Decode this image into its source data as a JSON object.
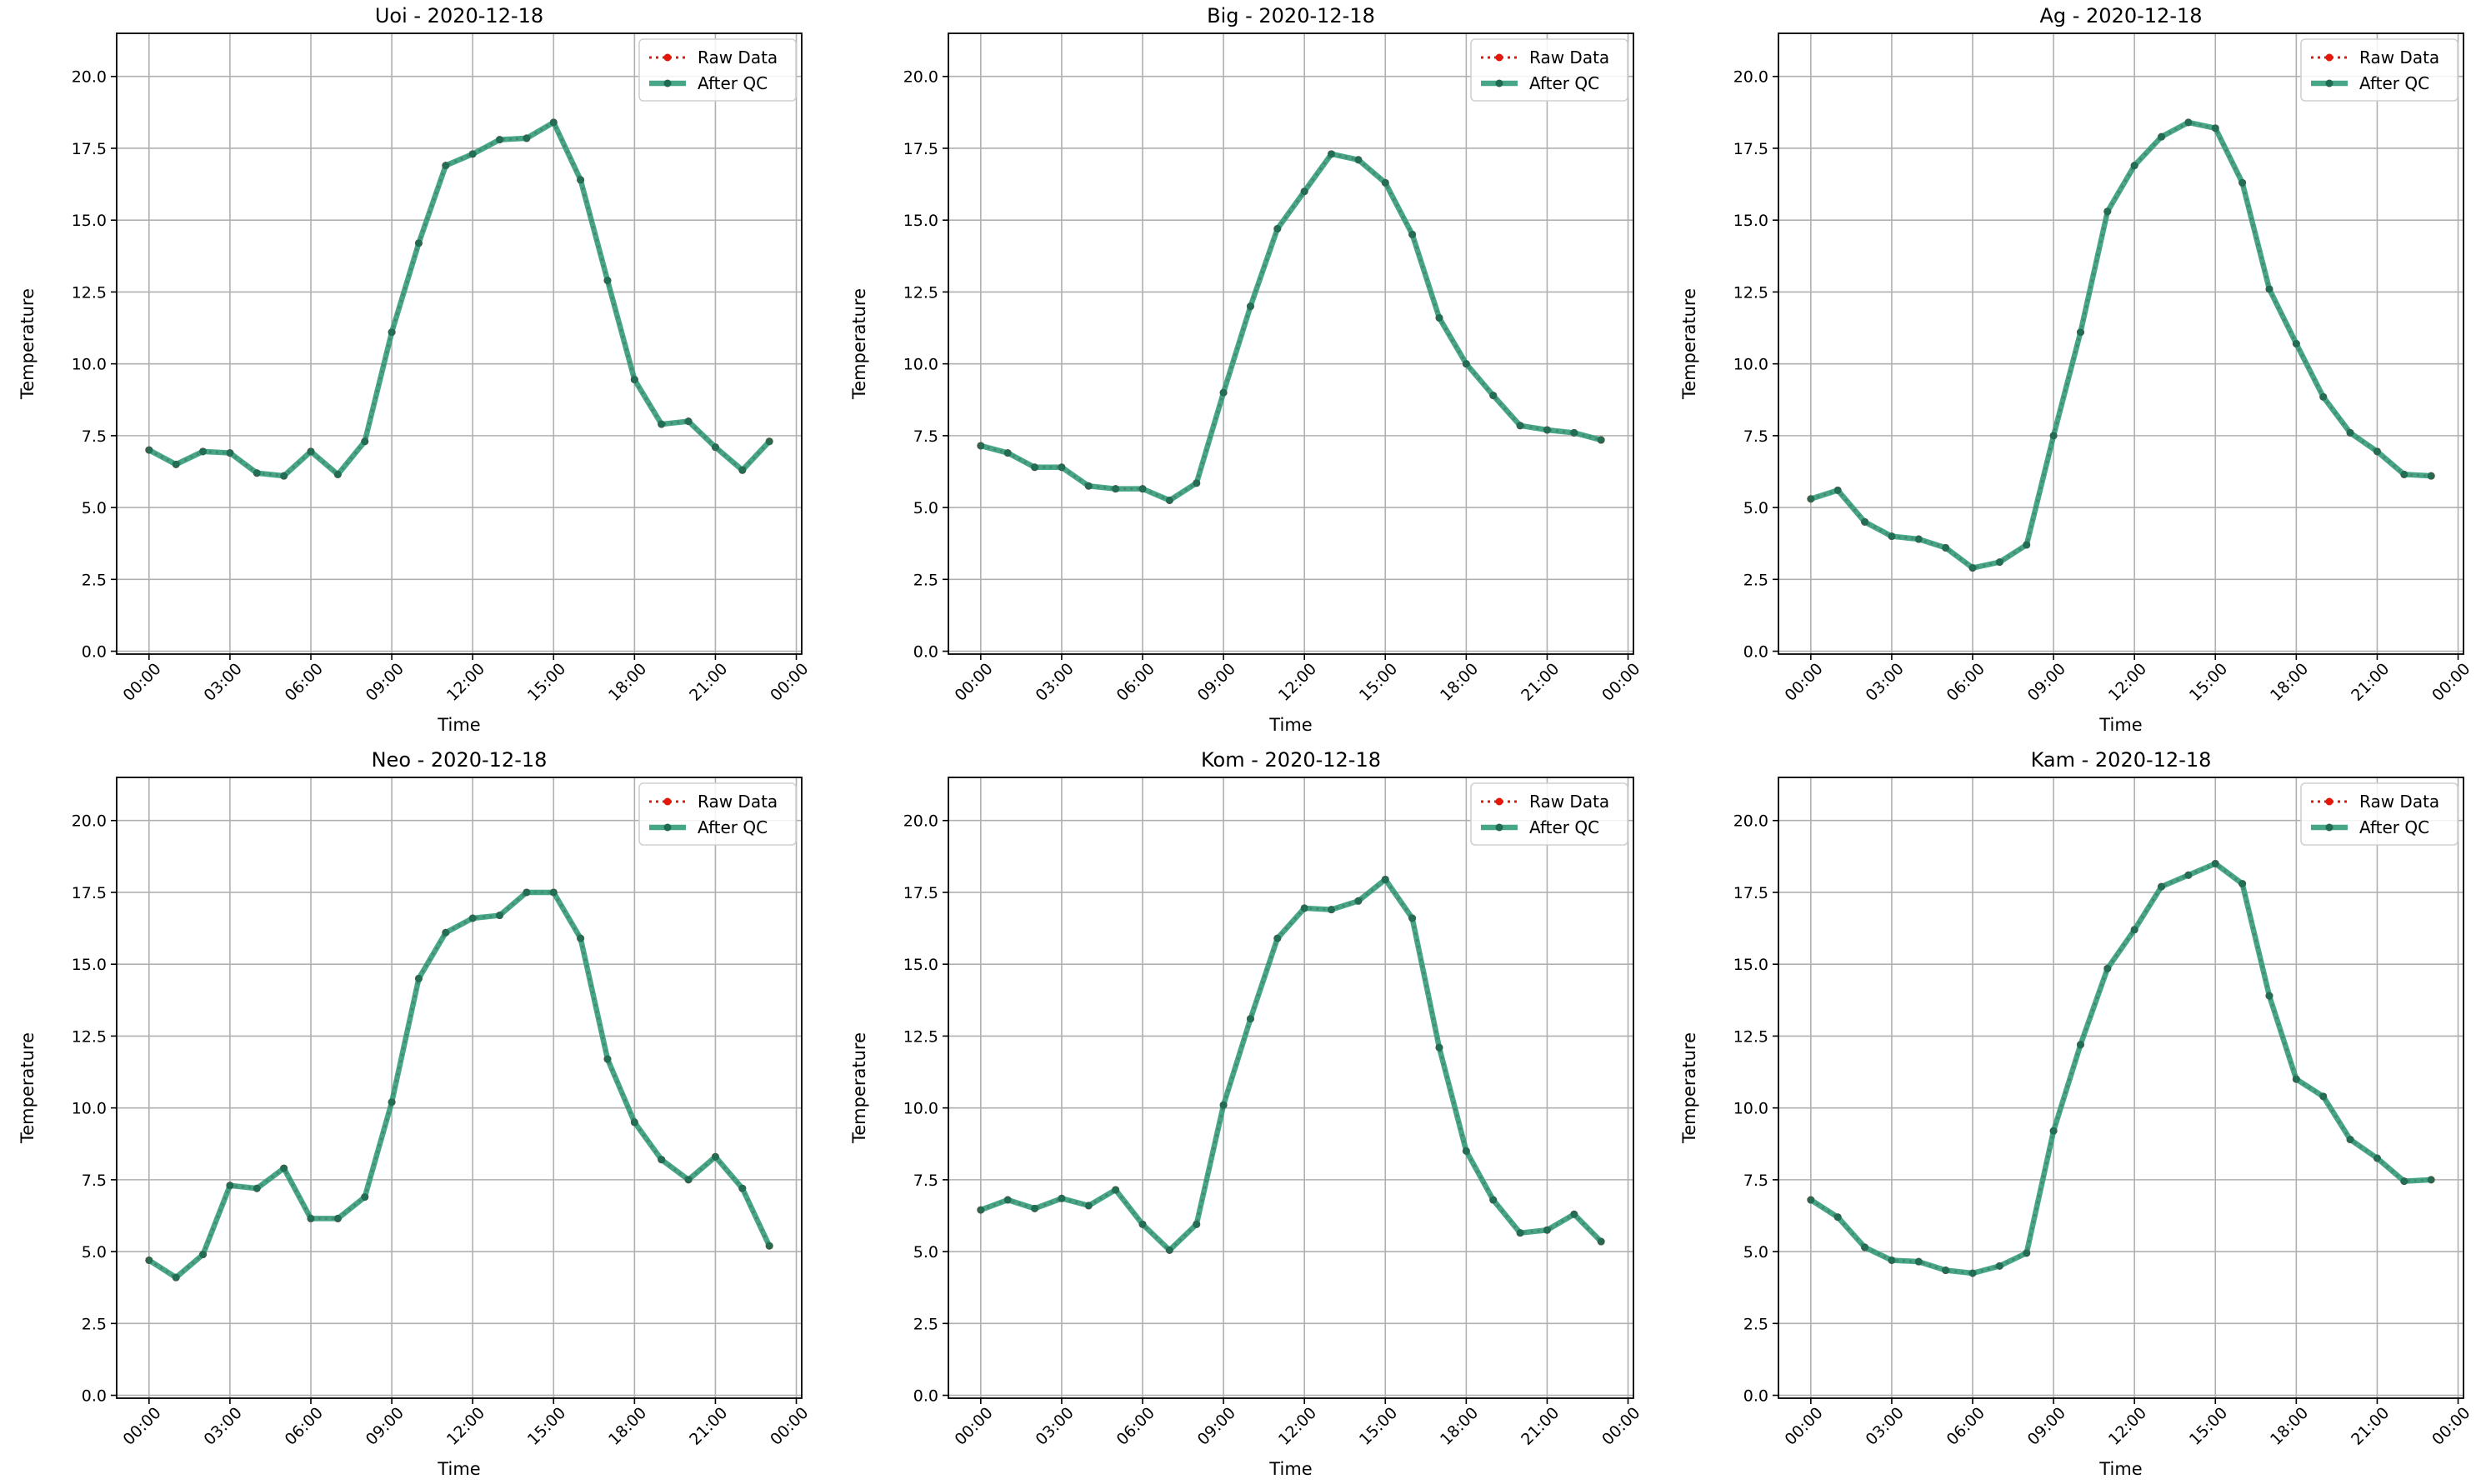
{
  "figure": {
    "xlabel": "Time",
    "ylabel": "Temperature",
    "colors": {
      "raw": "#e3170a",
      "qc": "#2e9a78",
      "qc_marker": "#1f6b52",
      "grid": "#b0b0b0",
      "axes": "#000000"
    },
    "legend": {
      "placement": "top-right",
      "raw_label": "Raw Data",
      "qc_label": "After QC"
    }
  },
  "chart_data": [
    {
      "type": "line",
      "title": "Uoi - 2020-12-18",
      "xlabel": "Time",
      "ylabel": "Temperature",
      "x_ticks": [
        "00:00",
        "03:00",
        "06:00",
        "09:00",
        "12:00",
        "15:00",
        "18:00",
        "21:00",
        "00:00"
      ],
      "y_ticks": [
        "0.0",
        "2.5",
        "5.0",
        "7.5",
        "10.0",
        "12.5",
        "15.0",
        "17.5",
        "20.0"
      ],
      "xlim": [
        -1.2,
        24.2
      ],
      "ylim": [
        -0.1,
        21.5
      ],
      "grid": true,
      "legend": "top-right",
      "x": [
        0,
        1,
        2,
        3,
        4,
        5,
        6,
        7,
        8,
        9,
        10,
        11,
        12,
        13,
        14,
        15,
        16,
        17,
        18,
        19,
        20,
        21,
        22,
        23
      ],
      "series": [
        {
          "name": "Raw Data",
          "style": "dotted-red",
          "values": [
            7.0,
            6.5,
            6.95,
            6.9,
            6.2,
            6.1,
            6.95,
            6.15,
            7.3,
            11.1,
            14.2,
            16.9,
            17.3,
            17.8,
            17.85,
            18.4,
            16.4,
            12.9,
            9.45,
            7.9,
            8.0,
            7.1,
            6.3,
            7.3
          ]
        },
        {
          "name": "After QC",
          "style": "solid-green",
          "values": [
            7.0,
            6.5,
            6.95,
            6.9,
            6.2,
            6.1,
            6.95,
            6.15,
            7.3,
            11.1,
            14.2,
            16.9,
            17.3,
            17.8,
            17.85,
            18.4,
            16.4,
            12.9,
            9.45,
            7.9,
            8.0,
            7.1,
            6.3,
            7.3
          ]
        }
      ]
    },
    {
      "type": "line",
      "title": "Big - 2020-12-18",
      "xlabel": "Time",
      "ylabel": "Temperature",
      "x_ticks": [
        "00:00",
        "03:00",
        "06:00",
        "09:00",
        "12:00",
        "15:00",
        "18:00",
        "21:00",
        "00:00"
      ],
      "y_ticks": [
        "0.0",
        "2.5",
        "5.0",
        "7.5",
        "10.0",
        "12.5",
        "15.0",
        "17.5",
        "20.0"
      ],
      "xlim": [
        -1.2,
        24.2
      ],
      "ylim": [
        -0.1,
        21.5
      ],
      "grid": true,
      "legend": "top-right",
      "x": [
        0,
        1,
        2,
        3,
        4,
        5,
        6,
        7,
        8,
        9,
        10,
        11,
        12,
        13,
        14,
        15,
        16,
        17,
        18,
        19,
        20,
        21,
        22,
        23
      ],
      "series": [
        {
          "name": "Raw Data",
          "style": "dotted-red",
          "values": [
            7.15,
            6.9,
            6.4,
            6.4,
            5.75,
            5.65,
            5.65,
            5.25,
            5.85,
            9.0,
            12.0,
            14.7,
            16.0,
            17.3,
            17.1,
            16.3,
            14.5,
            11.6,
            10.0,
            8.9,
            7.85,
            7.7,
            7.6,
            7.35
          ]
        },
        {
          "name": "After QC",
          "style": "solid-green",
          "values": [
            7.15,
            6.9,
            6.4,
            6.4,
            5.75,
            5.65,
            5.65,
            5.25,
            5.85,
            9.0,
            12.0,
            14.7,
            16.0,
            17.3,
            17.1,
            16.3,
            14.5,
            11.6,
            10.0,
            8.9,
            7.85,
            7.7,
            7.6,
            7.35
          ]
        }
      ]
    },
    {
      "type": "line",
      "title": "Ag - 2020-12-18",
      "xlabel": "Time",
      "ylabel": "Temperature",
      "x_ticks": [
        "00:00",
        "03:00",
        "06:00",
        "09:00",
        "12:00",
        "15:00",
        "18:00",
        "21:00",
        "00:00"
      ],
      "y_ticks": [
        "0.0",
        "2.5",
        "5.0",
        "7.5",
        "10.0",
        "12.5",
        "15.0",
        "17.5",
        "20.0"
      ],
      "xlim": [
        -1.2,
        24.2
      ],
      "ylim": [
        -0.1,
        21.5
      ],
      "grid": true,
      "legend": "top-right",
      "x": [
        0,
        1,
        2,
        3,
        4,
        5,
        6,
        7,
        8,
        9,
        10,
        11,
        12,
        13,
        14,
        15,
        16,
        17,
        18,
        19,
        20,
        21,
        22,
        23
      ],
      "series": [
        {
          "name": "Raw Data",
          "style": "dotted-red",
          "values": [
            5.3,
            5.6,
            4.5,
            4.0,
            3.9,
            3.6,
            2.9,
            3.1,
            3.7,
            7.5,
            11.1,
            15.3,
            16.9,
            17.9,
            18.4,
            18.2,
            16.3,
            12.6,
            10.7,
            8.85,
            7.6,
            6.95,
            6.15,
            6.1
          ]
        },
        {
          "name": "After QC",
          "style": "solid-green",
          "values": [
            5.3,
            5.6,
            4.5,
            4.0,
            3.9,
            3.6,
            2.9,
            3.1,
            3.7,
            7.5,
            11.1,
            15.3,
            16.9,
            17.9,
            18.4,
            18.2,
            16.3,
            12.6,
            10.7,
            8.85,
            7.6,
            6.95,
            6.15,
            6.1
          ]
        }
      ]
    },
    {
      "type": "line",
      "title": "Neo - 2020-12-18",
      "xlabel": "Time",
      "ylabel": "Temperature",
      "x_ticks": [
        "00:00",
        "03:00",
        "06:00",
        "09:00",
        "12:00",
        "15:00",
        "18:00",
        "21:00",
        "00:00"
      ],
      "y_ticks": [
        "0.0",
        "2.5",
        "5.0",
        "7.5",
        "10.0",
        "12.5",
        "15.0",
        "17.5",
        "20.0"
      ],
      "xlim": [
        -1.2,
        24.2
      ],
      "ylim": [
        -0.1,
        21.5
      ],
      "grid": true,
      "legend": "top-right",
      "x": [
        0,
        1,
        2,
        3,
        4,
        5,
        6,
        7,
        8,
        9,
        10,
        11,
        12,
        13,
        14,
        15,
        16,
        17,
        18,
        19,
        20,
        21,
        22,
        23
      ],
      "series": [
        {
          "name": "Raw Data",
          "style": "dotted-red",
          "values": [
            4.7,
            4.1,
            4.9,
            7.3,
            7.2,
            7.9,
            6.15,
            6.15,
            6.9,
            10.2,
            14.5,
            16.1,
            16.6,
            16.7,
            17.5,
            17.5,
            15.9,
            11.7,
            9.5,
            8.2,
            7.5,
            8.3,
            7.2,
            5.2
          ]
        },
        {
          "name": "After QC",
          "style": "solid-green",
          "values": [
            4.7,
            4.1,
            4.9,
            7.3,
            7.2,
            7.9,
            6.15,
            6.15,
            6.9,
            10.2,
            14.5,
            16.1,
            16.6,
            16.7,
            17.5,
            17.5,
            15.9,
            11.7,
            9.5,
            8.2,
            7.5,
            8.3,
            7.2,
            5.2
          ]
        }
      ]
    },
    {
      "type": "line",
      "title": "Kom - 2020-12-18",
      "xlabel": "Time",
      "ylabel": "Temperature",
      "x_ticks": [
        "00:00",
        "03:00",
        "06:00",
        "09:00",
        "12:00",
        "15:00",
        "18:00",
        "21:00",
        "00:00"
      ],
      "y_ticks": [
        "0.0",
        "2.5",
        "5.0",
        "7.5",
        "10.0",
        "12.5",
        "15.0",
        "17.5",
        "20.0"
      ],
      "xlim": [
        -1.2,
        24.2
      ],
      "ylim": [
        -0.1,
        21.5
      ],
      "grid": true,
      "legend": "top-right",
      "x": [
        0,
        1,
        2,
        3,
        4,
        5,
        6,
        7,
        8,
        9,
        10,
        11,
        12,
        13,
        14,
        15,
        16,
        17,
        18,
        19,
        20,
        21,
        22,
        23
      ],
      "series": [
        {
          "name": "Raw Data",
          "style": "dotted-red",
          "values": [
            6.45,
            6.8,
            6.5,
            6.85,
            6.6,
            7.15,
            5.95,
            5.05,
            5.95,
            10.1,
            13.1,
            15.9,
            16.95,
            16.9,
            17.2,
            17.95,
            16.6,
            12.1,
            8.5,
            6.8,
            5.65,
            5.75,
            6.3,
            5.35
          ]
        },
        {
          "name": "After QC",
          "style": "solid-green",
          "values": [
            6.45,
            6.8,
            6.5,
            6.85,
            6.6,
            7.15,
            5.95,
            5.05,
            5.95,
            10.1,
            13.1,
            15.9,
            16.95,
            16.9,
            17.2,
            17.95,
            16.6,
            12.1,
            8.5,
            6.8,
            5.65,
            5.75,
            6.3,
            5.35
          ]
        }
      ]
    },
    {
      "type": "line",
      "title": "Kam - 2020-12-18",
      "xlabel": "Time",
      "ylabel": "Temperature",
      "x_ticks": [
        "00:00",
        "03:00",
        "06:00",
        "09:00",
        "12:00",
        "15:00",
        "18:00",
        "21:00",
        "00:00"
      ],
      "y_ticks": [
        "0.0",
        "2.5",
        "5.0",
        "7.5",
        "10.0",
        "12.5",
        "15.0",
        "17.5",
        "20.0"
      ],
      "xlim": [
        -1.2,
        24.2
      ],
      "ylim": [
        -0.1,
        21.5
      ],
      "grid": true,
      "legend": "top-right",
      "x": [
        0,
        1,
        2,
        3,
        4,
        5,
        6,
        7,
        8,
        9,
        10,
        11,
        12,
        13,
        14,
        15,
        16,
        17,
        18,
        19,
        20,
        21,
        22,
        23
      ],
      "series": [
        {
          "name": "Raw Data",
          "style": "dotted-red",
          "values": [
            6.8,
            6.2,
            5.15,
            4.7,
            4.65,
            4.35,
            4.25,
            4.5,
            4.95,
            9.2,
            12.2,
            14.85,
            16.2,
            17.7,
            18.1,
            18.5,
            17.8,
            13.9,
            11.0,
            10.4,
            8.9,
            8.25,
            7.45,
            7.5
          ]
        },
        {
          "name": "After QC",
          "style": "solid-green",
          "values": [
            6.8,
            6.2,
            5.15,
            4.7,
            4.65,
            4.35,
            4.25,
            4.5,
            4.95,
            9.2,
            12.2,
            14.85,
            16.2,
            17.7,
            18.1,
            18.5,
            17.8,
            13.9,
            11.0,
            10.4,
            8.9,
            8.25,
            7.45,
            7.5
          ]
        }
      ]
    }
  ]
}
